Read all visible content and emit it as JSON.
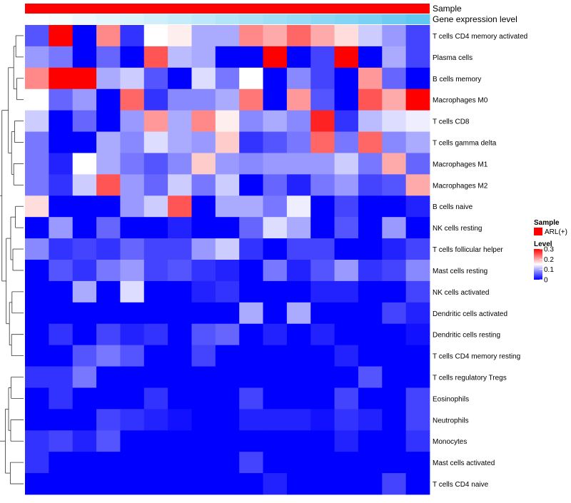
{
  "chart_data": {
    "type": "heatmap",
    "annotation_rows": [
      {
        "label": "Sample",
        "color": "#ff0000"
      },
      {
        "label": "Gene expression level",
        "color_low": "#ffffff",
        "color_high": "#61c8f2"
      }
    ],
    "rows": [
      "T cells CD4 memory activated",
      "Plasma cells",
      "B cells memory",
      "Macrophages M0",
      "T cells CD8",
      "T cells gamma delta",
      "Macrophages M1",
      "Macrophages M2",
      "B cells naive",
      "NK cells resting",
      "T cells follicular helper",
      "Mast cells resting",
      "NK cells activated",
      "Dendritic cells activated",
      "Dendritic cells resting",
      "T cells CD4 memory resting",
      "T cells regulatory  Tregs",
      "Eosinophils",
      "Neutrophils",
      "Monocytes",
      "Mast cells activated",
      "T cells CD4 naive"
    ],
    "n_columns": 17,
    "values": [
      [
        0.05,
        0.3,
        0.0,
        0.22,
        0.03,
        0.15,
        0.16,
        0.1,
        0.1,
        0.22,
        0.2,
        0.24,
        0.2,
        0.17,
        0.12,
        0.09,
        0.04
      ],
      [
        0.09,
        0.07,
        0.0,
        0.06,
        0.0,
        0.25,
        0.11,
        0.1,
        0.0,
        0.0,
        0.3,
        0.0,
        0.04,
        0.3,
        0.0,
        0.1,
        0.04
      ],
      [
        0.22,
        0.3,
        0.3,
        0.1,
        0.12,
        0.05,
        0.0,
        0.13,
        0.07,
        0.15,
        0.0,
        0.08,
        0.04,
        0.0,
        0.21,
        0.06,
        0.0
      ],
      [
        0.15,
        0.06,
        0.09,
        0.0,
        0.24,
        0.03,
        0.08,
        0.08,
        0.1,
        0.23,
        0.0,
        0.21,
        0.05,
        0.0,
        0.25,
        0.2,
        0.3
      ],
      [
        0.12,
        0.0,
        0.06,
        0.0,
        0.09,
        0.21,
        0.1,
        0.22,
        0.16,
        0.08,
        0.1,
        0.08,
        0.28,
        0.03,
        0.11,
        0.13,
        0.14
      ],
      [
        0.07,
        0.0,
        0.0,
        0.1,
        0.08,
        0.13,
        0.1,
        0.09,
        0.18,
        0.03,
        0.05,
        0.07,
        0.24,
        0.07,
        0.24,
        0.08,
        0.1
      ],
      [
        0.07,
        0.02,
        0.15,
        0.1,
        0.07,
        0.05,
        0.08,
        0.18,
        0.09,
        0.08,
        0.09,
        0.09,
        0.09,
        0.12,
        0.07,
        0.2,
        0.06
      ],
      [
        0.07,
        0.03,
        0.12,
        0.25,
        0.09,
        0.06,
        0.12,
        0.07,
        0.12,
        0.0,
        0.06,
        0.02,
        0.07,
        0.09,
        0.04,
        0.05,
        0.2
      ],
      [
        0.17,
        0.0,
        0.0,
        0.0,
        0.09,
        0.12,
        0.25,
        0.0,
        0.1,
        0.1,
        0.07,
        0.14,
        0.0,
        0.04,
        0.0,
        0.0,
        0.02
      ],
      [
        0.0,
        0.09,
        0.0,
        0.06,
        0.0,
        0.0,
        0.02,
        0.0,
        0.0,
        0.06,
        0.13,
        0.1,
        0.0,
        0.05,
        0.0,
        0.09,
        0.0
      ],
      [
        0.08,
        0.03,
        0.04,
        0.03,
        0.06,
        0.04,
        0.04,
        0.09,
        0.12,
        0.03,
        0.0,
        0.04,
        0.04,
        0.0,
        0.0,
        0.02,
        0.04
      ],
      [
        0.0,
        0.05,
        0.03,
        0.07,
        0.09,
        0.04,
        0.05,
        0.03,
        0.02,
        0.0,
        0.07,
        0.02,
        0.05,
        0.09,
        0.03,
        0.04,
        0.08
      ],
      [
        0.0,
        0.0,
        0.1,
        0.0,
        0.13,
        0.0,
        0.0,
        0.02,
        0.03,
        0.0,
        0.0,
        0.0,
        0.02,
        0.02,
        0.0,
        0.0,
        0.04
      ],
      [
        0.0,
        0.0,
        0.0,
        0.0,
        0.0,
        0.0,
        0.0,
        0.0,
        0.0,
        0.1,
        0.0,
        0.1,
        0.0,
        0.0,
        0.0,
        0.04,
        0.02
      ],
      [
        0.0,
        0.03,
        0.0,
        0.04,
        0.02,
        0.03,
        0.0,
        0.05,
        0.06,
        0.0,
        0.02,
        0.0,
        0.02,
        0.0,
        0.0,
        0.0,
        0.01
      ],
      [
        0.0,
        0.0,
        0.05,
        0.07,
        0.05,
        0.0,
        0.0,
        0.04,
        0.0,
        0.0,
        0.0,
        0.0,
        0.0,
        0.02,
        0.0,
        0.0,
        0.0
      ],
      [
        0.03,
        0.03,
        0.07,
        0.0,
        0.0,
        0.0,
        0.0,
        0.0,
        0.0,
        0.0,
        0.0,
        0.0,
        0.0,
        0.0,
        0.05,
        0.0,
        0.0
      ],
      [
        0.0,
        0.03,
        0.0,
        0.0,
        0.0,
        0.03,
        0.0,
        0.0,
        0.0,
        0.04,
        0.0,
        0.0,
        0.0,
        0.04,
        0.0,
        0.0,
        0.04
      ],
      [
        0.0,
        0.0,
        0.0,
        0.04,
        0.03,
        0.02,
        0.01,
        0.0,
        0.0,
        0.02,
        0.02,
        0.02,
        0.01,
        0.03,
        0.02,
        0.0,
        0.04
      ],
      [
        0.03,
        0.04,
        0.02,
        0.05,
        0.0,
        0.0,
        0.0,
        0.0,
        0.0,
        0.0,
        0.0,
        0.0,
        0.0,
        0.02,
        0.0,
        0.0,
        0.03
      ],
      [
        0.03,
        0.0,
        0.0,
        0.0,
        0.0,
        0.0,
        0.0,
        0.0,
        0.0,
        0.04,
        0.0,
        0.0,
        0.0,
        0.0,
        0.0,
        0.0,
        0.0
      ],
      [
        0.0,
        0.0,
        0.0,
        0.0,
        0.0,
        0.0,
        0.0,
        0.0,
        0.0,
        0.0,
        0.02,
        0.0,
        0.0,
        0.0,
        0.0,
        0.04,
        0.0
      ]
    ],
    "gene_expression_level": [
      0.0,
      0.06,
      0.12,
      0.18,
      0.24,
      0.3,
      0.36,
      0.42,
      0.48,
      0.54,
      0.6,
      0.66,
      0.72,
      0.78,
      0.84,
      0.92,
      1.0
    ],
    "color_scale": {
      "low": "#0000ff",
      "mid": "#ffffff",
      "high": "#ff0000",
      "min": 0,
      "mid_value": 0.15,
      "max": 0.3
    },
    "legend": {
      "sample_title": "Sample",
      "sample_entry": "ARL(+)",
      "level_title": "Level",
      "level_ticks": [
        0.3,
        0.2,
        0.1,
        0
      ]
    },
    "row_dendrogram": true,
    "legend_position": "right"
  }
}
